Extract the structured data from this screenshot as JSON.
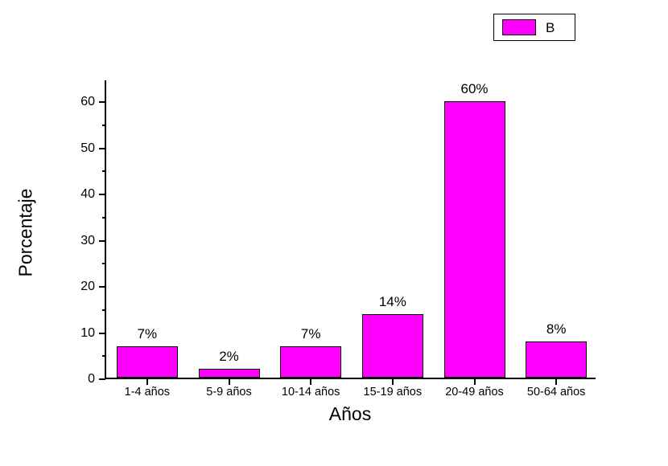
{
  "chart_data": {
    "type": "bar",
    "title": "",
    "xlabel": "Años",
    "ylabel": "Porcentaje",
    "categories": [
      "1-4 años",
      "5-9 años",
      "10-14 años",
      "15-19 años",
      "20-49 años",
      "50-64 años"
    ],
    "values": [
      6.8,
      1.9,
      6.8,
      13.7,
      59.9,
      7.9
    ],
    "value_labels": [
      "7%",
      "2%",
      "7%",
      "14%",
      "60%",
      "8%"
    ],
    "legend_label": "B",
    "bar_color": "#FF00FF",
    "bar_border_color": "#000000",
    "axis_color": "#000000",
    "background_color": "#FFFFFF",
    "ylim": [
      0,
      64.7
    ],
    "yticks": [
      0,
      10,
      20,
      30,
      40,
      50,
      60
    ],
    "yticks_minor": [
      5,
      15,
      25,
      35,
      45,
      55
    ],
    "grid": false,
    "legend_position": "top-right"
  }
}
